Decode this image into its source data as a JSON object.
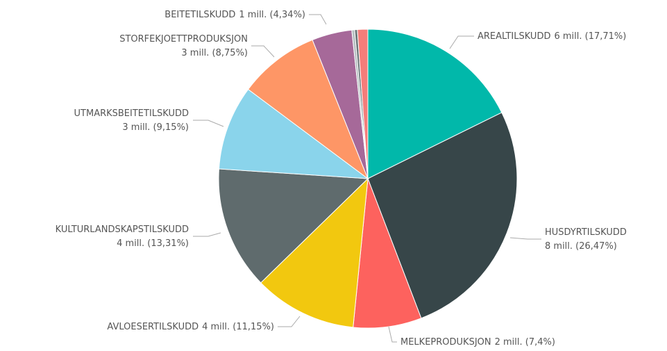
{
  "chart_data": {
    "type": "pie",
    "categories": [
      "AREALTILSKUDD",
      "HUSDYRTILSKUDD",
      "MELKEPRODUKSJON",
      "AVLOESERTILSKUDD",
      "KULTURLANDSKAPSTILSKUDD",
      "UTMARKSBEITETILSKUDD",
      "STORFEKJOETTPRODUKSJON",
      "BEITETILSKUDD",
      null,
      null,
      null
    ],
    "values": [
      17.71,
      26.47,
      7.4,
      11.15,
      13.31,
      9.15,
      8.75,
      4.34,
      0.3,
      0.3,
      1.12
    ],
    "value_labels": [
      "6 mill. (17,71%)",
      "8 mill. (26,47%)",
      "2 mill. (7,4%)",
      "4 mill. (11,15%)",
      "4 mill. (13,31%)",
      "3 mill. (9,15%)",
      "3 mill. (8,75%)",
      "1 mill. (4,34%)",
      null,
      null,
      null
    ],
    "colors": [
      "#01b8aa",
      "#374649",
      "#fd625e",
      "#f2c80f",
      "#5f6b6d",
      "#8ad4eb",
      "#fe9666",
      "#a66999",
      "#b6bfc1",
      "#6c7779",
      "#f47d7a"
    ]
  }
}
